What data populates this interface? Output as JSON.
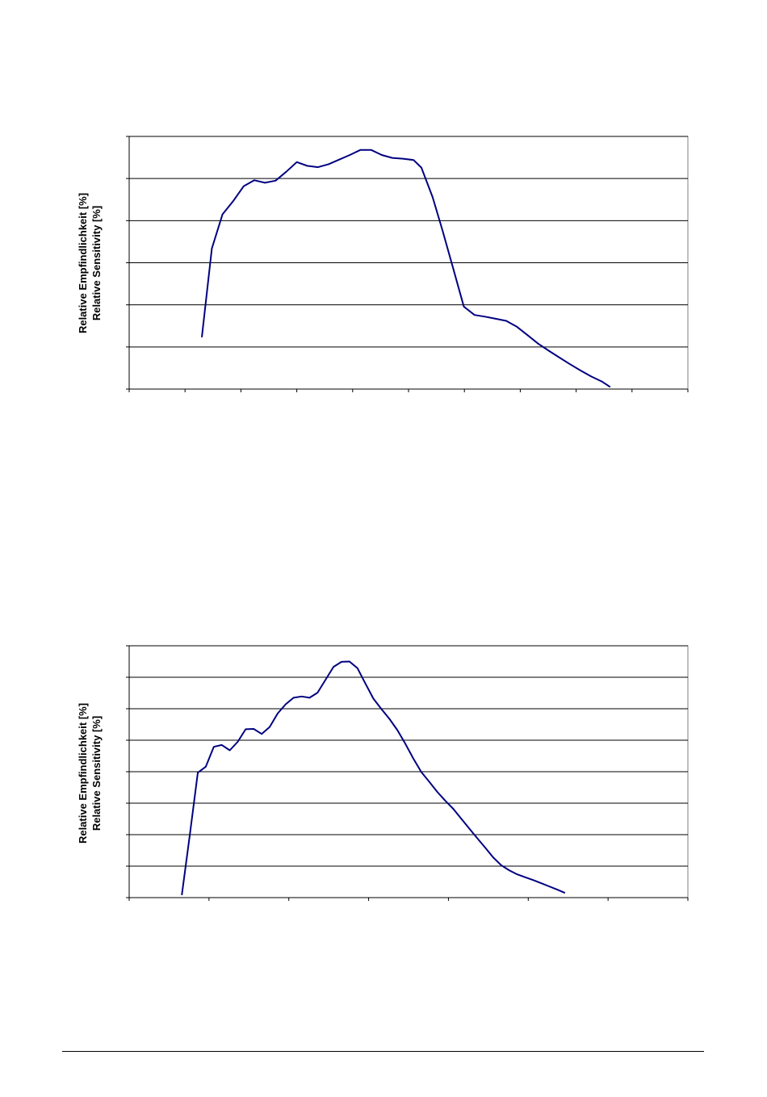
{
  "charts": [
    {
      "ylabel_line1": "Relative Empfindlichkeit [%]",
      "ylabel_line2": "Relative Sensitivity [%]"
    },
    {
      "ylabel_line1": "Relative Empfindlichkeit [%]",
      "ylabel_line2": "Relative Sensitivity [%]"
    }
  ],
  "chart_data": [
    {
      "type": "line",
      "title": "",
      "xlabel": "",
      "ylabel": "Relative Empfindlichkeit [%] / Relative Sensitivity [%]",
      "xlim": [
        0,
        10
      ],
      "ylim": [
        0,
        6
      ],
      "grid": true,
      "line_color": "#000080",
      "series": [
        {
          "x": [
            1.3,
            1.48,
            1.67,
            1.86,
            2.05,
            2.24,
            2.43,
            2.62,
            2.81,
            3.0,
            3.19,
            3.38,
            3.57,
            3.76,
            3.95,
            4.14,
            4.33,
            4.52,
            4.71,
            4.9,
            5.09,
            5.23,
            5.43,
            5.61,
            5.8,
            5.99,
            6.18,
            6.37,
            6.56,
            6.75,
            6.94,
            7.13,
            7.32,
            7.51,
            7.7,
            7.89,
            8.08,
            8.27,
            8.46,
            8.61
          ],
          "y": [
            1.23,
            3.34,
            4.15,
            4.46,
            4.82,
            4.96,
            4.9,
            4.95,
            5.16,
            5.39,
            5.3,
            5.27,
            5.34,
            5.45,
            5.56,
            5.68,
            5.68,
            5.56,
            5.49,
            5.47,
            5.44,
            5.26,
            4.56,
            3.76,
            2.86,
            1.96,
            1.76,
            1.72,
            1.67,
            1.62,
            1.48,
            1.28,
            1.08,
            0.91,
            0.75,
            0.59,
            0.44,
            0.3,
            0.18,
            0.05
          ]
        }
      ]
    },
    {
      "type": "line",
      "title": "",
      "xlabel": "",
      "ylabel": "Relative Empfindlichkeit [%] / Relative Sensitivity [%]",
      "xlim": [
        0,
        7
      ],
      "ylim": [
        0,
        8
      ],
      "grid": true,
      "line_color": "#000080",
      "series": [
        {
          "x": [
            0.66,
            0.76,
            0.86,
            0.96,
            1.06,
            1.16,
            1.26,
            1.36,
            1.46,
            1.56,
            1.66,
            1.76,
            1.86,
            1.96,
            2.06,
            2.16,
            2.26,
            2.36,
            2.46,
            2.56,
            2.66,
            2.76,
            2.86,
            2.96,
            3.06,
            3.16,
            3.26,
            3.36,
            3.46,
            3.56,
            3.66,
            3.76,
            3.86,
            3.96,
            4.06,
            4.16,
            4.26,
            4.36,
            4.46,
            4.56,
            4.66,
            4.76,
            4.86,
            4.96,
            5.06,
            5.16,
            5.26,
            5.36,
            5.46
          ],
          "y": [
            0.08,
            1.99,
            3.97,
            4.16,
            4.79,
            4.85,
            4.68,
            4.95,
            5.35,
            5.36,
            5.2,
            5.42,
            5.85,
            6.14,
            6.35,
            6.39,
            6.35,
            6.51,
            6.92,
            7.33,
            7.49,
            7.5,
            7.29,
            6.8,
            6.32,
            5.99,
            5.68,
            5.32,
            4.89,
            4.42,
            3.99,
            3.68,
            3.36,
            3.08,
            2.82,
            2.51,
            2.2,
            1.89,
            1.59,
            1.28,
            1.03,
            0.87,
            0.74,
            0.65,
            0.56,
            0.46,
            0.36,
            0.26,
            0.15
          ]
        }
      ]
    }
  ]
}
